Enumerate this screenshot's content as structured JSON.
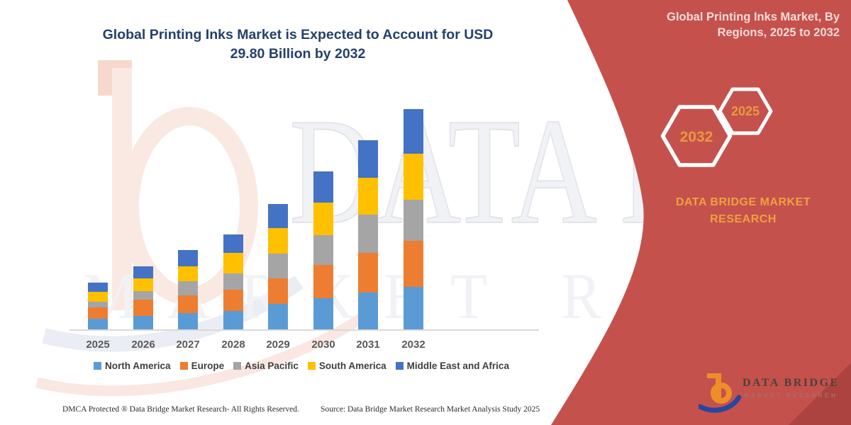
{
  "header": {
    "chart_title_line1": "Global Printing Inks Market is Expected to Account for USD",
    "chart_title_line2": "29.80 Billion by 2032"
  },
  "side_panel": {
    "panel_title_line1": "Global Printing Inks Market, By",
    "panel_title_line2": "Regions, 2025 to 2032",
    "hexagons": [
      {
        "label": "2032"
      },
      {
        "label": "2025"
      }
    ],
    "brand_line1": "DATA BRIDGE MARKET",
    "brand_line2": "RESEARCH",
    "panel_color": "#C5514D",
    "gold_color": "#EDA23C"
  },
  "watermark": {
    "text_large": "DATA BRIDGE",
    "text_row2": "MARKET RE"
  },
  "chart_data": {
    "type": "bar",
    "stacked": true,
    "title": "Global Printing Inks Market is Expected to Account for USD 29.80 Billion by 2032",
    "unit": "USD Billion",
    "categories": [
      "2025",
      "2026",
      "2027",
      "2028",
      "2029",
      "2030",
      "2031",
      "2032"
    ],
    "series": [
      {
        "name": "North America",
        "color": "#5B9BD5",
        "values": [
          1.44,
          1.82,
          2.18,
          2.49,
          3.49,
          4.22,
          4.95,
          5.75
        ]
      },
      {
        "name": "Europe",
        "color": "#ED7D31",
        "values": [
          1.53,
          2.23,
          2.4,
          2.87,
          3.45,
          4.48,
          5.37,
          6.23
        ]
      },
      {
        "name": "Asia Pacific",
        "color": "#A5A5A5",
        "values": [
          0.8,
          1.12,
          1.92,
          2.23,
          3.35,
          4.0,
          5.17,
          5.59
        ]
      },
      {
        "name": "South America",
        "color": "#FFC000",
        "values": [
          1.34,
          1.76,
          2.07,
          2.72,
          3.41,
          4.41,
          5.01,
          6.22
        ]
      },
      {
        "name": "Middle East and Africa",
        "color": "#4472C4",
        "values": [
          1.22,
          1.59,
          2.18,
          2.55,
          3.3,
          4.27,
          5.05,
          6.01
        ]
      }
    ],
    "totals": [
      6.33,
      8.52,
      10.75,
      12.86,
      17.0,
      21.38,
      25.55,
      29.8
    ],
    "xlabel": "",
    "ylabel": "",
    "y_axis_visible": false,
    "gridlines": false,
    "legend_position": "bottom"
  },
  "footer": {
    "left": "DMCA Protected ® Data Bridge Market Research-  All Rights Reserved.",
    "right": "Source: Data Bridge Market Research  Market Analysis Study 2025"
  },
  "logo": {
    "title": "DATA BRIDGE",
    "subtitle": "MARKET RESEARCH"
  }
}
